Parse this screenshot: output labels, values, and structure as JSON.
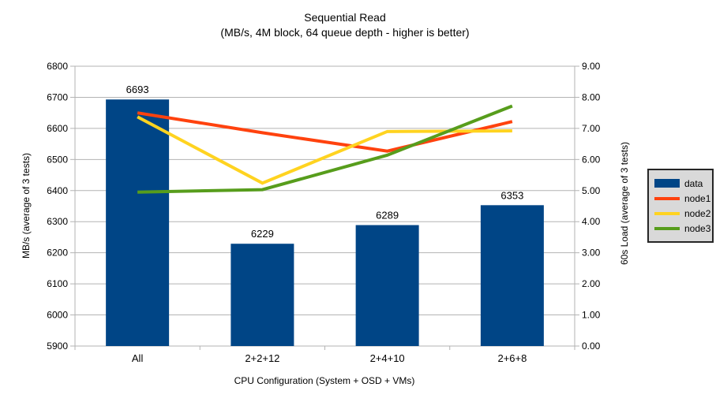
{
  "chart_data": {
    "type": "combo-bar-line",
    "title": "Sequential Read",
    "subtitle": "(MB/s, 4M block, 64 queue depth - higher is better)",
    "xlabel": "CPU Configuration (System + OSD + VMs)",
    "ylabel_left": "MB/s (average of 3 tests)",
    "ylabel_right": "60s Load (average of 3 tests)",
    "categories": [
      "All",
      "2+2+12",
      "2+4+10",
      "2+6+8"
    ],
    "bar_series": {
      "name": "data",
      "color": "#004586",
      "axis": "left",
      "values": [
        6693,
        6229,
        6289,
        6353
      ],
      "value_labels": [
        "6693",
        "6229",
        "6289",
        "6353"
      ]
    },
    "line_series": [
      {
        "name": "node1",
        "color": "#ff420e",
        "axis": "right",
        "values": [
          7.5,
          6.86,
          6.27,
          7.22
        ]
      },
      {
        "name": "node2",
        "color": "#ffd320",
        "axis": "right",
        "values": [
          7.37,
          5.24,
          6.9,
          6.92
        ]
      },
      {
        "name": "node3",
        "color": "#579d1c",
        "axis": "right",
        "values": [
          4.95,
          5.03,
          6.14,
          7.72
        ]
      }
    ],
    "left_axis": {
      "min": 5900,
      "max": 6800,
      "tick_labels": [
        "5900",
        "6000",
        "6100",
        "6200",
        "6300",
        "6400",
        "6500",
        "6600",
        "6700",
        "6800"
      ]
    },
    "right_axis": {
      "min": 0,
      "max": 9,
      "tick_labels": [
        "0.00",
        "1.00",
        "2.00",
        "3.00",
        "4.00",
        "5.00",
        "6.00",
        "7.00",
        "8.00",
        "9.00"
      ]
    },
    "grid": {
      "horizontal": true,
      "vertical": false,
      "color": "#b3b3b3"
    },
    "axis_color": "#b3b3b3",
    "text_color": "#000000",
    "legend_position": "right"
  },
  "legend": {
    "items": [
      {
        "label": "data",
        "swatch": "bar",
        "color": "#004586"
      },
      {
        "label": "node1",
        "swatch": "line",
        "color": "#ff420e"
      },
      {
        "label": "node2",
        "swatch": "line",
        "color": "#ffd320"
      },
      {
        "label": "node3",
        "swatch": "line",
        "color": "#579d1c"
      }
    ]
  }
}
